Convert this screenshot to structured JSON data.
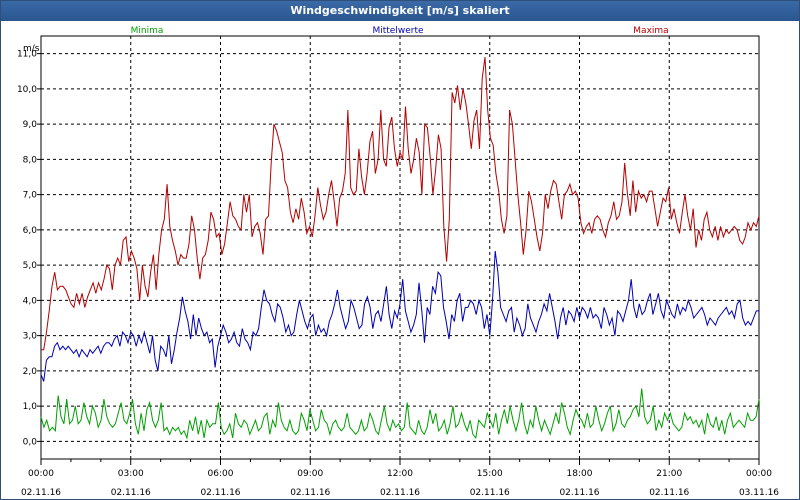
{
  "window": {
    "title": "Windgeschwindigkeit [m/s] skaliert"
  },
  "chart_data": {
    "type": "line",
    "unit_label": "m/s",
    "ylim": [
      -0.5,
      11.5
    ],
    "y_ticks": [
      "0,0",
      "1,0",
      "2,0",
      "3,0",
      "4,0",
      "5,0",
      "6,0",
      "7,0",
      "8,0",
      "9,0",
      "10,0",
      "11,0"
    ],
    "x_tick_times": [
      "00:00",
      "03:00",
      "06:00",
      "09:00",
      "12:00",
      "15:00",
      "18:00",
      "21:00",
      "00:00"
    ],
    "x_tick_dates": [
      "02.11.16",
      "02.11.16",
      "02.11.16",
      "02.11.16",
      "02.11.16",
      "02.11.16",
      "02.11.16",
      "02.11.16",
      "03.11.16"
    ],
    "grid": true,
    "colors": {
      "Minima": "#00a000",
      "Mittelwerte": "#0000b4",
      "Maxima": "#b40000"
    },
    "series": [
      {
        "name": "Minima",
        "values": [
          0.7,
          0.4,
          0.6,
          0.3,
          0.4,
          0.3,
          1.3,
          0.7,
          0.5,
          1.2,
          0.5,
          0.6,
          1.0,
          0.5,
          0.6,
          1.1,
          0.7,
          0.5,
          1.0,
          0.8,
          0.4,
          0.6,
          1.2,
          0.7,
          0.5,
          0.4,
          0.5,
          0.8,
          1.1,
          0.6,
          0.5,
          0.8,
          1.2,
          0.5,
          0.2,
          0.8,
          0.3,
          0.9,
          1.1,
          0.6,
          0.4,
          0.6,
          1.1,
          0.3,
          0.4,
          0.2,
          0.4,
          0.3,
          0.4,
          0.2,
          0.3,
          0.1,
          0.6,
          0.3,
          0.7,
          0.2,
          0.6,
          0.1,
          0.6,
          0.4,
          0.5,
          0.5,
          1.1,
          0.4,
          0.2,
          0.3,
          0.5,
          0.1,
          0.8,
          0.5,
          0.4,
          0.6,
          0.5,
          0.2,
          0.4,
          0.6,
          0.3,
          0.4,
          0.7,
          0.8,
          0.2,
          0.6,
          0.4,
          1.1,
          0.6,
          0.4,
          0.3,
          0.6,
          0.3,
          0.2,
          0.3,
          0.8,
          0.6,
          0.3,
          0.9,
          0.6,
          0.3,
          0.4,
          0.9,
          0.6,
          0.5,
          0.2,
          0.5,
          0.6,
          0.4,
          0.3,
          0.4,
          0.8,
          0.4,
          0.3,
          0.2,
          0.3,
          0.6,
          0.3,
          0.4,
          0.8,
          0.6,
          0.3,
          0.2,
          0.6,
          1.0,
          0.5,
          0.3,
          0.6,
          0.4,
          0.5,
          0.3,
          0.4,
          1.1,
          0.4,
          0.3,
          0.2,
          0.6,
          0.3,
          0.2,
          0.4,
          0.9,
          0.5,
          0.8,
          0.3,
          0.4,
          0.6,
          0.2,
          0.5,
          1.0,
          0.4,
          0.5,
          0.8,
          0.5,
          0.3,
          0.6,
          0.2,
          0.1,
          0.6,
          0.5,
          0.4,
          0.8,
          0.6,
          0.4,
          0.8,
          0.2,
          0.6,
          0.9,
          0.5,
          1.0,
          0.6,
          0.3,
          0.6,
          1.1,
          0.5,
          0.2,
          0.6,
          0.4,
          1.0,
          0.6,
          0.3,
          0.6,
          0.4,
          0.2,
          0.5,
          0.8,
          0.5,
          1.1,
          0.8,
          0.4,
          0.2,
          0.6,
          0.9,
          0.7,
          0.6,
          0.4,
          0.8,
          0.4,
          0.5,
          1.0,
          0.6,
          0.3,
          0.5,
          0.8,
          1.0,
          0.3,
          0.5,
          0.9,
          0.5,
          0.4,
          0.6,
          0.7,
          0.9,
          1.0,
          0.7,
          1.5,
          0.7,
          0.5,
          0.6,
          1.0,
          0.3,
          0.6,
          0.4,
          0.8,
          0.6,
          0.8,
          0.5,
          0.4,
          0.3,
          0.4,
          0.8,
          0.6,
          0.7,
          0.5,
          0.6,
          0.4,
          0.6,
          0.2,
          0.8,
          0.5,
          0.4,
          0.7,
          0.3,
          0.6,
          0.2,
          0.6,
          0.8,
          0.4,
          0.5,
          0.6,
          0.5,
          0.4,
          0.8,
          0.6,
          0.6,
          0.7,
          1.2
        ]
      },
      {
        "name": "Mittelwerte",
        "values": [
          1.9,
          1.7,
          2.3,
          2.4,
          2.4,
          2.7,
          2.8,
          2.6,
          2.7,
          2.6,
          2.7,
          2.6,
          2.5,
          2.6,
          2.4,
          2.6,
          2.5,
          2.4,
          2.6,
          2.5,
          2.6,
          2.7,
          2.5,
          2.7,
          2.8,
          2.8,
          2.7,
          2.9,
          3.0,
          2.7,
          3.1,
          3.0,
          2.8,
          3.1,
          3.0,
          2.7,
          3.0,
          2.8,
          3.1,
          2.8,
          2.5,
          3.0,
          2.3,
          2.0,
          2.7,
          2.6,
          2.4,
          3.0,
          2.2,
          2.6,
          3.1,
          3.5,
          4.1,
          3.7,
          3.4,
          2.9,
          3.6,
          3.0,
          3.5,
          3.2,
          3.0,
          3.1,
          2.8,
          2.9,
          2.1,
          2.7,
          3.0,
          3.3,
          3.1,
          2.8,
          2.9,
          3.1,
          2.8,
          2.7,
          3.2,
          2.9,
          2.8,
          2.6,
          3.1,
          3.0,
          3.2,
          3.8,
          4.3,
          4.0,
          3.9,
          3.6,
          3.4,
          3.9,
          3.8,
          3.5,
          3.1,
          3.3,
          3.0,
          3.1,
          3.6,
          4.0,
          3.7,
          3.4,
          3.2,
          3.5,
          3.6,
          3.0,
          3.3,
          3.1,
          3.2,
          3.0,
          3.4,
          3.6,
          3.9,
          4.3,
          3.8,
          3.5,
          3.2,
          3.4,
          4.0,
          3.8,
          3.5,
          3.2,
          3.3,
          3.9,
          4.1,
          3.8,
          3.2,
          3.6,
          3.7,
          3.4,
          3.9,
          4.4,
          3.6,
          3.2,
          3.7,
          3.5,
          3.9,
          4.6,
          3.7,
          3.4,
          3.1,
          3.3,
          3.6,
          4.5,
          3.7,
          2.8,
          3.8,
          3.6,
          4.4,
          4.2,
          4.8,
          4.7,
          3.8,
          3.4,
          2.9,
          3.6,
          3.4,
          4.0,
          4.2,
          3.4,
          3.8,
          3.8,
          4.0,
          3.9,
          3.6,
          4.0,
          3.8,
          3.2,
          3.6,
          3.0,
          4.0,
          5.4,
          4.8,
          3.8,
          3.6,
          3.4,
          3.7,
          3.8,
          3.1,
          3.5,
          3.3,
          3.0,
          3.2,
          3.9,
          3.5,
          3.3,
          3.1,
          3.4,
          3.6,
          3.9,
          3.7,
          4.2,
          3.8,
          3.4,
          2.9,
          3.5,
          3.8,
          3.3,
          3.7,
          3.6,
          3.4,
          3.8,
          3.5,
          3.8,
          3.7,
          3.5,
          3.8,
          3.5,
          3.6,
          3.5,
          3.2,
          3.8,
          3.6,
          3.3,
          3.5,
          3.0,
          3.7,
          3.6,
          3.4,
          3.7,
          4.0,
          4.6,
          3.8,
          3.5,
          3.9,
          3.6,
          3.7,
          4.0,
          4.2,
          3.6,
          3.9,
          4.2,
          3.7,
          3.5,
          4.0,
          3.8,
          3.6,
          3.5,
          3.9,
          3.6,
          3.8,
          3.7,
          4.0,
          3.8,
          3.5,
          3.6,
          3.7,
          3.8,
          3.6,
          3.3,
          3.5,
          3.4,
          3.3,
          3.5,
          3.6,
          3.7,
          3.8,
          3.6,
          3.7,
          3.5,
          3.9,
          4.0,
          3.5,
          3.3,
          3.4,
          3.3,
          3.5,
          3.7,
          3.7
        ]
      },
      {
        "name": "Maxima",
        "values": [
          2.6,
          2.6,
          3.1,
          3.7,
          4.4,
          4.8,
          4.3,
          4.4,
          4.4,
          4.3,
          4.1,
          3.9,
          3.8,
          4.2,
          3.9,
          4.2,
          3.8,
          4.1,
          4.3,
          4.5,
          4.2,
          4.5,
          4.3,
          4.6,
          5.0,
          4.9,
          4.3,
          5.0,
          5.2,
          5.0,
          5.7,
          5.8,
          5.1,
          5.4,
          5.2,
          4.9,
          4.0,
          5.0,
          4.4,
          4.1,
          4.8,
          5.3,
          4.3,
          5.3,
          6.0,
          6.3,
          7.3,
          6.1,
          5.7,
          5.4,
          5.0,
          5.3,
          5.2,
          5.2,
          5.6,
          6.4,
          6.0,
          5.2,
          4.6,
          5.2,
          5.3,
          5.7,
          6.5,
          6.3,
          5.8,
          5.9,
          5.3,
          5.6,
          6.2,
          6.8,
          6.4,
          6.3,
          6.1,
          6.0,
          7.0,
          6.5,
          7.0,
          5.8,
          6.1,
          6.2,
          5.9,
          5.3,
          6.3,
          6.4,
          7.9,
          9.0,
          8.8,
          8.5,
          8.2,
          7.4,
          7.2,
          6.5,
          6.2,
          6.6,
          6.3,
          6.9,
          6.5,
          5.9,
          6.1,
          5.8,
          6.4,
          7.2,
          6.7,
          6.3,
          6.5,
          7.0,
          7.4,
          6.8,
          6.1,
          6.9,
          7.1,
          7.6,
          9.4,
          7.2,
          7.0,
          7.1,
          8.3,
          7.5,
          7.0,
          7.6,
          8.5,
          8.8,
          7.6,
          8.0,
          9.4,
          8.0,
          7.8,
          8.9,
          9.2,
          8.3,
          7.8,
          8.2,
          8.0,
          9.5,
          8.3,
          7.6,
          8.0,
          8.6,
          8.2,
          7.0,
          9.0,
          8.9,
          8.1,
          7.0,
          7.7,
          8.7,
          8.3,
          6.1,
          5.1,
          6.3,
          9.9,
          9.6,
          10.1,
          9.4,
          10.0,
          9.6,
          9.0,
          8.3,
          9.1,
          9.4,
          8.3,
          10.3,
          10.9,
          9.4,
          8.6,
          8.4,
          7.6,
          7.1,
          6.3,
          5.9,
          6.4,
          9.4,
          9.0,
          8.0,
          7.0,
          6.2,
          5.3,
          6.0,
          7.1,
          6.8,
          6.3,
          5.8,
          5.4,
          5.9,
          7.0,
          6.6,
          7.1,
          7.4,
          7.3,
          6.8,
          6.3,
          7.0,
          7.1,
          7.3,
          7.0,
          7.1,
          6.9,
          6.2,
          5.9,
          6.1,
          6.2,
          5.9,
          6.3,
          6.4,
          6.3,
          6.0,
          5.8,
          6.2,
          6.4,
          6.8,
          6.3,
          6.4,
          6.8,
          7.9,
          7.0,
          6.4,
          7.4,
          6.5,
          7.1,
          6.9,
          7.0,
          6.8,
          7.1,
          7.1,
          6.6,
          6.1,
          6.5,
          6.9,
          6.8,
          7.2,
          6.3,
          6.6,
          6.2,
          5.9,
          6.5,
          7.0,
          6.4,
          6.0,
          6.6,
          5.5,
          6.0,
          5.7,
          6.3,
          6.5,
          6.0,
          5.8,
          6.1,
          5.7,
          6.1,
          5.8,
          6.0,
          5.9,
          6.0,
          6.1,
          6.0,
          5.7,
          5.6,
          5.8,
          6.2,
          6.0,
          6.2,
          6.1,
          6.4
        ]
      }
    ]
  }
}
